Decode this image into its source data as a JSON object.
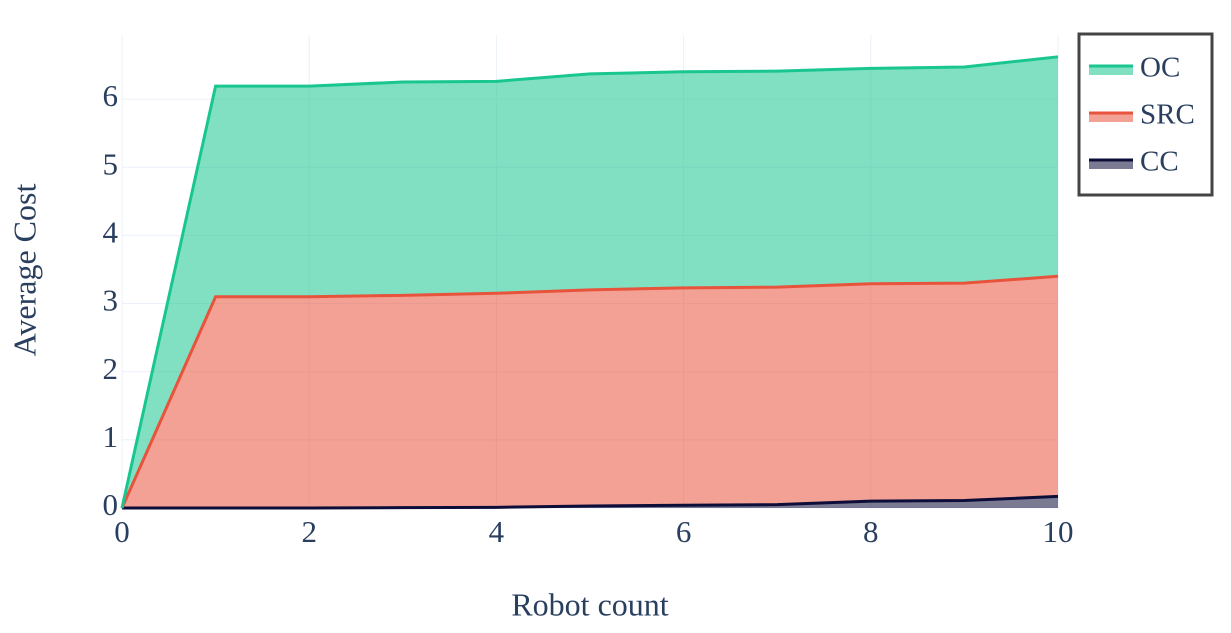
{
  "chart_data": {
    "type": "stacked-area",
    "x": [
      0,
      1,
      2,
      3,
      4,
      5,
      6,
      7,
      8,
      9,
      10
    ],
    "series": [
      {
        "name": "OC",
        "color": "#19c690",
        "values": [
          0,
          3.09,
          3.09,
          3.13,
          3.11,
          3.17,
          3.17,
          3.17,
          3.16,
          3.17,
          3.22
        ]
      },
      {
        "name": "SRC",
        "color": "#e8533c",
        "values": [
          0,
          3.1,
          3.1,
          3.115,
          3.14,
          3.17,
          3.19,
          3.19,
          3.19,
          3.19,
          3.23
        ]
      },
      {
        "name": "CC",
        "color": "#0d0d3a",
        "values": [
          0,
          0,
          0,
          0.005,
          0.01,
          0.03,
          0.04,
          0.05,
          0.1,
          0.11,
          0.17
        ]
      }
    ],
    "x_label": "Robot count",
    "y_label": "Average Cost",
    "xlim": [
      0,
      10
    ],
    "xticks": [
      0,
      2,
      4,
      6,
      8,
      10
    ],
    "ylim": [
      0,
      6.94
    ],
    "yticks": [
      0,
      1,
      2,
      3,
      4,
      5,
      6
    ],
    "grid": true,
    "legend": "top-right"
  }
}
